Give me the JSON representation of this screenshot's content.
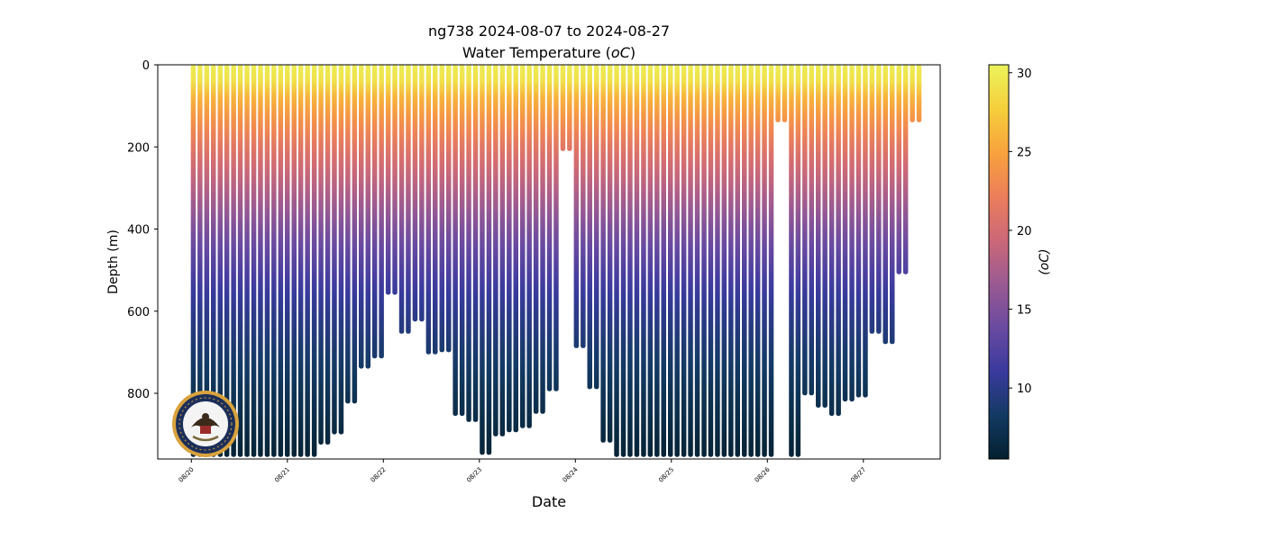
{
  "chart_data": {
    "type": "scatter",
    "title": "ng738 2024-08-07 to 2024-08-27",
    "subtitle": "Water Temperature (",
    "subtitle_unit_italic": "oC",
    "subtitle_close": ")",
    "xlabel": "Date",
    "ylabel": "Depth (m)",
    "colorbar_label": "(oC)",
    "x_range_days": [
      -0.35,
      7.8
    ],
    "x_start_date": "2024-08-20",
    "ylim": [
      0,
      960
    ],
    "y_inverted": true,
    "y_ticks": [
      0,
      200,
      400,
      600,
      800
    ],
    "x_ticks": [
      {
        "day": 0,
        "label": "08/20"
      },
      {
        "day": 1,
        "label": "08/21"
      },
      {
        "day": 2,
        "label": "08/22"
      },
      {
        "day": 3,
        "label": "08/23"
      },
      {
        "day": 4,
        "label": "08/24"
      },
      {
        "day": 5,
        "label": "08/25"
      },
      {
        "day": 6,
        "label": "08/26"
      },
      {
        "day": 7,
        "label": "08/27"
      }
    ],
    "color_range": [
      5.5,
      30.5
    ],
    "colorbar_ticks": [
      10,
      15,
      20,
      25,
      30
    ],
    "colormap": "thermal",
    "colormap_stops": [
      "#04202f",
      "#133a63",
      "#3a3a9e",
      "#6a4aa0",
      "#9a5a92",
      "#cc6878",
      "#ec7e5a",
      "#f8a23c",
      "#f5cf3c",
      "#ebf35b"
    ],
    "grid": false,
    "profiles": [
      {
        "day": 0.02,
        "max_depth": 955
      },
      {
        "day": 0.09,
        "max_depth": 955
      },
      {
        "day": 0.16,
        "max_depth": 955
      },
      {
        "day": 0.23,
        "max_depth": 955
      },
      {
        "day": 0.3,
        "max_depth": 955
      },
      {
        "day": 0.37,
        "max_depth": 955
      },
      {
        "day": 0.44,
        "max_depth": 955
      },
      {
        "day": 0.51,
        "max_depth": 955
      },
      {
        "day": 0.58,
        "max_depth": 955
      },
      {
        "day": 0.65,
        "max_depth": 955
      },
      {
        "day": 0.72,
        "max_depth": 955
      },
      {
        "day": 0.79,
        "max_depth": 955
      },
      {
        "day": 0.86,
        "max_depth": 955
      },
      {
        "day": 0.93,
        "max_depth": 955
      },
      {
        "day": 1.0,
        "max_depth": 955
      },
      {
        "day": 1.07,
        "max_depth": 955
      },
      {
        "day": 1.14,
        "max_depth": 955
      },
      {
        "day": 1.21,
        "max_depth": 955
      },
      {
        "day": 1.28,
        "max_depth": 955
      },
      {
        "day": 1.35,
        "max_depth": 925
      },
      {
        "day": 1.42,
        "max_depth": 925
      },
      {
        "day": 1.49,
        "max_depth": 900
      },
      {
        "day": 1.56,
        "max_depth": 900
      },
      {
        "day": 1.63,
        "max_depth": 825
      },
      {
        "day": 1.7,
        "max_depth": 825
      },
      {
        "day": 1.77,
        "max_depth": 740
      },
      {
        "day": 1.84,
        "max_depth": 740
      },
      {
        "day": 1.91,
        "max_depth": 715
      },
      {
        "day": 1.98,
        "max_depth": 715
      },
      {
        "day": 2.05,
        "max_depth": 560
      },
      {
        "day": 2.12,
        "max_depth": 560
      },
      {
        "day": 2.19,
        "max_depth": 655
      },
      {
        "day": 2.26,
        "max_depth": 655
      },
      {
        "day": 2.33,
        "max_depth": 625
      },
      {
        "day": 2.4,
        "max_depth": 625
      },
      {
        "day": 2.47,
        "max_depth": 705
      },
      {
        "day": 2.54,
        "max_depth": 705
      },
      {
        "day": 2.61,
        "max_depth": 700
      },
      {
        "day": 2.68,
        "max_depth": 700
      },
      {
        "day": 2.75,
        "max_depth": 855
      },
      {
        "day": 2.82,
        "max_depth": 855
      },
      {
        "day": 2.89,
        "max_depth": 870
      },
      {
        "day": 2.96,
        "max_depth": 870
      },
      {
        "day": 3.03,
        "max_depth": 950
      },
      {
        "day": 3.1,
        "max_depth": 950
      },
      {
        "day": 3.17,
        "max_depth": 905
      },
      {
        "day": 3.24,
        "max_depth": 905
      },
      {
        "day": 3.31,
        "max_depth": 895
      },
      {
        "day": 3.38,
        "max_depth": 895
      },
      {
        "day": 3.45,
        "max_depth": 885
      },
      {
        "day": 3.52,
        "max_depth": 885
      },
      {
        "day": 3.59,
        "max_depth": 850
      },
      {
        "day": 3.66,
        "max_depth": 850
      },
      {
        "day": 3.73,
        "max_depth": 795
      },
      {
        "day": 3.8,
        "max_depth": 795
      },
      {
        "day": 3.87,
        "max_depth": 210
      },
      {
        "day": 3.94,
        "max_depth": 210
      },
      {
        "day": 4.01,
        "max_depth": 690
      },
      {
        "day": 4.08,
        "max_depth": 690
      },
      {
        "day": 4.15,
        "max_depth": 790
      },
      {
        "day": 4.22,
        "max_depth": 790
      },
      {
        "day": 4.29,
        "max_depth": 920
      },
      {
        "day": 4.36,
        "max_depth": 920
      },
      {
        "day": 4.43,
        "max_depth": 955
      },
      {
        "day": 4.5,
        "max_depth": 955
      },
      {
        "day": 4.57,
        "max_depth": 955
      },
      {
        "day": 4.64,
        "max_depth": 955
      },
      {
        "day": 4.71,
        "max_depth": 955
      },
      {
        "day": 4.78,
        "max_depth": 955
      },
      {
        "day": 4.85,
        "max_depth": 955
      },
      {
        "day": 4.92,
        "max_depth": 955
      },
      {
        "day": 4.99,
        "max_depth": 955
      },
      {
        "day": 5.06,
        "max_depth": 955
      },
      {
        "day": 5.13,
        "max_depth": 955
      },
      {
        "day": 5.2,
        "max_depth": 955
      },
      {
        "day": 5.27,
        "max_depth": 955
      },
      {
        "day": 5.34,
        "max_depth": 955
      },
      {
        "day": 5.41,
        "max_depth": 955
      },
      {
        "day": 5.48,
        "max_depth": 955
      },
      {
        "day": 5.55,
        "max_depth": 955
      },
      {
        "day": 5.62,
        "max_depth": 955
      },
      {
        "day": 5.69,
        "max_depth": 955
      },
      {
        "day": 5.76,
        "max_depth": 955
      },
      {
        "day": 5.83,
        "max_depth": 955
      },
      {
        "day": 5.9,
        "max_depth": 955
      },
      {
        "day": 5.97,
        "max_depth": 955
      },
      {
        "day": 6.04,
        "max_depth": 955
      },
      {
        "day": 6.11,
        "max_depth": 140
      },
      {
        "day": 6.18,
        "max_depth": 140
      },
      {
        "day": 6.25,
        "max_depth": 955
      },
      {
        "day": 6.32,
        "max_depth": 955
      },
      {
        "day": 6.39,
        "max_depth": 805
      },
      {
        "day": 6.46,
        "max_depth": 805
      },
      {
        "day": 6.53,
        "max_depth": 835
      },
      {
        "day": 6.6,
        "max_depth": 835
      },
      {
        "day": 6.67,
        "max_depth": 855
      },
      {
        "day": 6.74,
        "max_depth": 855
      },
      {
        "day": 6.81,
        "max_depth": 820
      },
      {
        "day": 6.88,
        "max_depth": 820
      },
      {
        "day": 6.95,
        "max_depth": 810
      },
      {
        "day": 7.02,
        "max_depth": 810
      },
      {
        "day": 7.09,
        "max_depth": 655
      },
      {
        "day": 7.16,
        "max_depth": 655
      },
      {
        "day": 7.23,
        "max_depth": 680
      },
      {
        "day": 7.3,
        "max_depth": 680
      },
      {
        "day": 7.37,
        "max_depth": 510
      },
      {
        "day": 7.44,
        "max_depth": 510
      },
      {
        "day": 7.51,
        "max_depth": 140
      },
      {
        "day": 7.58,
        "max_depth": 140
      }
    ],
    "temperature_profile": [
      {
        "depth": 0,
        "temp": 30.0
      },
      {
        "depth": 40,
        "temp": 29.0
      },
      {
        "depth": 80,
        "temp": 26.0
      },
      {
        "depth": 140,
        "temp": 23.5
      },
      {
        "depth": 220,
        "temp": 20.5
      },
      {
        "depth": 320,
        "temp": 17.5
      },
      {
        "depth": 430,
        "temp": 14.0
      },
      {
        "depth": 550,
        "temp": 11.0
      },
      {
        "depth": 680,
        "temp": 9.0
      },
      {
        "depth": 800,
        "temp": 7.5
      },
      {
        "depth": 960,
        "temp": 5.8
      }
    ]
  },
  "logo": {
    "name": "United States Navy emblem",
    "text_top": "UNITED STATES",
    "text_bottom": "NAVY"
  }
}
